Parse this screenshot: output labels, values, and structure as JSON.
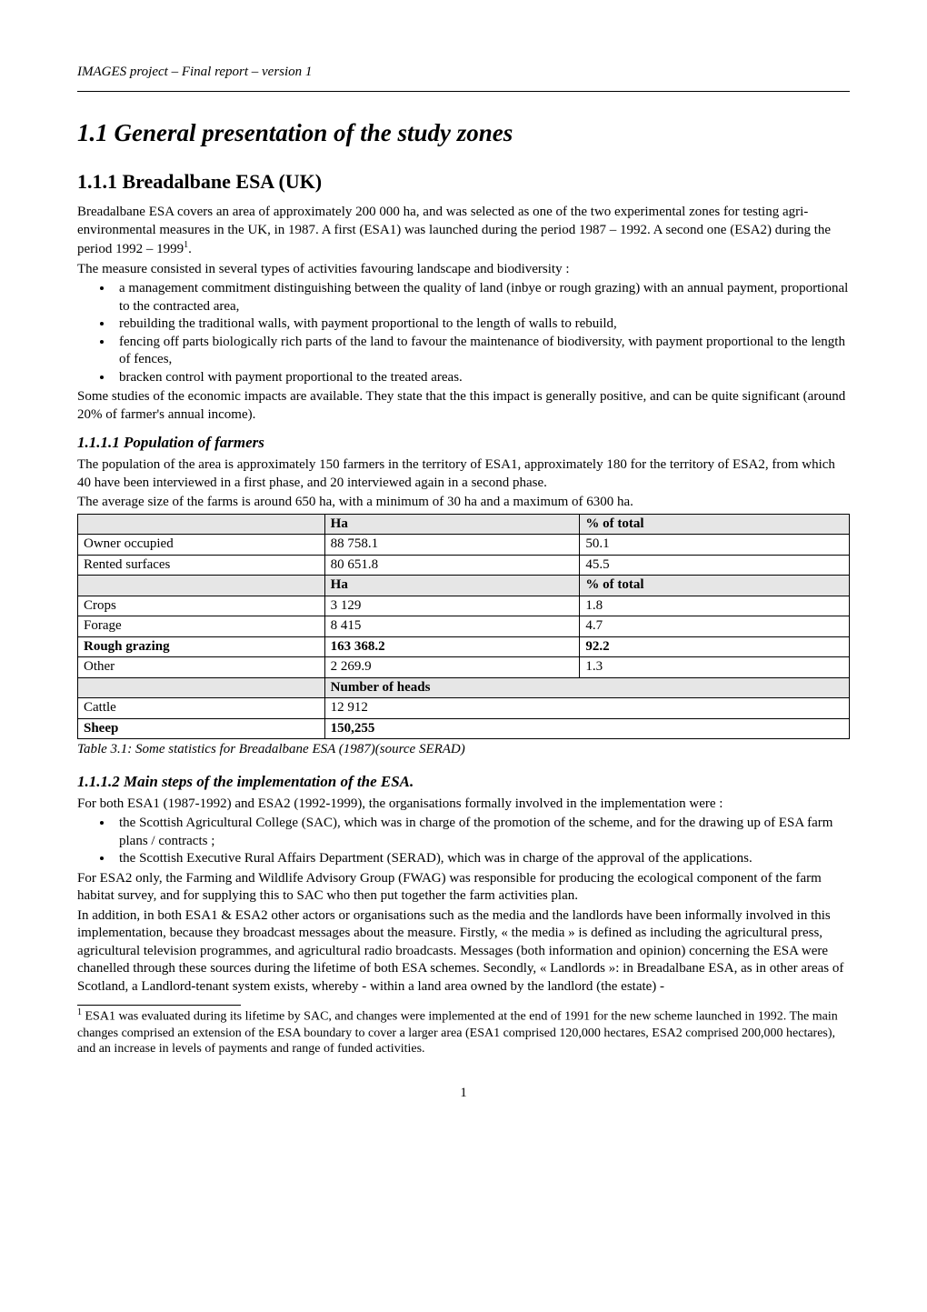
{
  "header": "IMAGES project – Final report – version 1",
  "h1": "1.1  General presentation of the study zones",
  "h2": "1.1.1  Breadalbane ESA (UK)",
  "intro_p1": "Breadalbane ESA covers an area of approximately 200 000 ha, and was selected as one of the two experimental zones for testing agri-environmental measures in the UK, in 1987. A first (ESA1) was launched during the period 1987 – 1992. A second one (ESA2) during the period 1992 – 1999",
  "intro_fn_marker": "1",
  "intro_p1_end": ".",
  "intro_p2": "The measure consisted in several types of activities favouring landscape and biodiversity :",
  "bullets1": [
    "a management commitment distinguishing between the quality of land (inbye or rough grazing)  with an annual payment, proportional to the contracted area,",
    "rebuilding the traditional walls, with payment proportional to the length of walls to rebuild,",
    "fencing off parts biologically rich parts of the land to favour the maintenance of biodiversity, with payment proportional to the length of fences,",
    "bracken control with payment proportional to the treated areas."
  ],
  "intro_p3": "Some studies of the economic impacts are available. They state that the this impact is generally positive, and can be quite significant (around 20% of farmer's annual income).",
  "h3_1": "1.1.1.1   Population of farmers",
  "pop_p1": "The population of the area is approximately 150 farmers in the territory of ESA1, approximately 180 for the territory of ESA2, from which 40 have been interviewed in a first phase, and 20 interviewed again in a second phase.",
  "pop_p2": "The average size of the farms is around 650 ha, with a minimum of 30 ha and a maximum of 6300 ha.",
  "table": {
    "headers1": [
      "",
      "Ha",
      "% of total"
    ],
    "rows1": [
      [
        "Owner occupied",
        "88 758.1",
        "50.1"
      ],
      [
        "Rented surfaces",
        "80 651.8",
        "45.5"
      ]
    ],
    "headers2": [
      "",
      "Ha",
      "% of total"
    ],
    "rows2": [
      [
        "Crops",
        "3 129",
        "1.8"
      ],
      [
        "Forage",
        "8 415",
        "4.7"
      ],
      [
        "Rough grazing",
        "163 368.2",
        "92.2",
        true
      ],
      [
        "Other",
        "2 269.9",
        "1.3"
      ]
    ],
    "headers3": [
      "",
      "Number of heads"
    ],
    "rows3": [
      [
        "Cattle",
        "12 912"
      ],
      [
        "Sheep",
        "150,255",
        true
      ]
    ]
  },
  "table_caption": "Table 3.1:  Some statistics for Breadalbane ESA (1987)(source SERAD)",
  "h3_2": "1.1.1.2   Main steps of the implementation of the ESA.",
  "impl_p1": "For both ESA1 (1987-1992) and ESA2 (1992-1999), the organisations formally involved in the implementation were :",
  "bullets2": [
    "the Scottish Agricultural College (SAC), which was in charge of the promotion of the scheme, and for the drawing up of ESA farm plans / contracts ;",
    "the Scottish Executive Rural Affairs Department (SERAD), which was in charge of the approval of the applications."
  ],
  "impl_p2": "For ESA2 only, the Farming and Wildlife Advisory Group (FWAG) was responsible for producing the ecological component of the farm habitat survey, and for supplying this to SAC who then put together the farm activities plan.",
  "impl_p3": "In addition, in both ESA1 & ESA2 other actors or organisations such as the media and the landlords have been informally involved in this implementation, because they broadcast messages about the measure. Firstly, « the media » is defined as including the agricultural press, agricultural television programmes, and agricultural radio broadcasts.  Messages (both information and opinion) concerning the ESA were chanelled through these sources during the lifetime of both ESA schemes. Secondly, « Landlords »: in Breadalbane ESA, as in other areas of Scotland, a Landlord-tenant system exists, whereby  - within a land area owned by the landlord (the estate) -",
  "footnote_marker": "1",
  "footnote": " ESA1 was evaluated during its lifetime by SAC, and changes were implemented at the end of 1991 for the new scheme launched in 1992. The main changes comprised an extension of the ESA boundary to cover a larger area (ESA1 comprised 120,000 hectares, ESA2 comprised 200,000 hectares), and an increase in levels of payments and range of funded activities.",
  "page_number": "1"
}
